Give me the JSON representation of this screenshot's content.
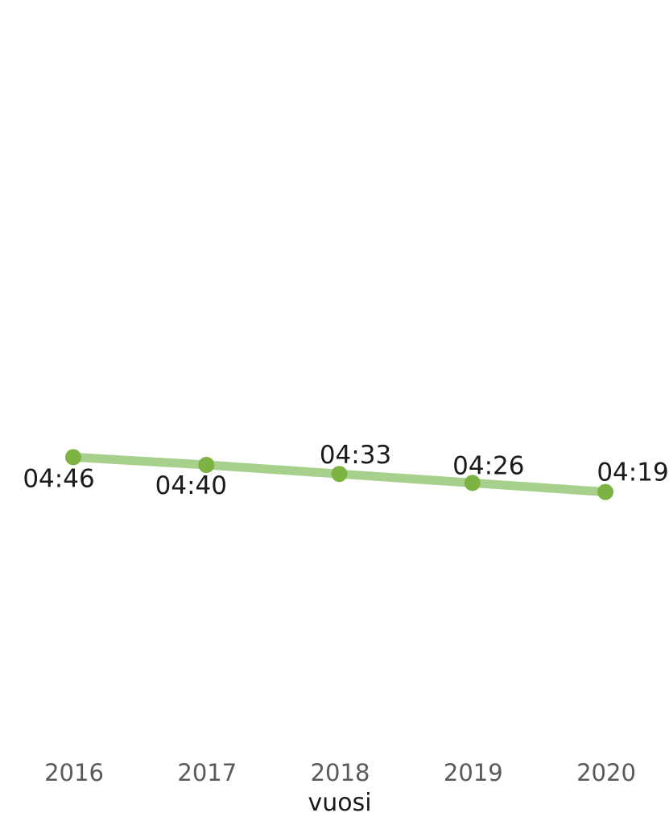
{
  "chart_data": {
    "type": "line",
    "title": "",
    "xlabel": "vuosi",
    "ylabel": "",
    "categories": [
      "2016",
      "2017",
      "2018",
      "2019",
      "2020"
    ],
    "series": [
      {
        "values": [
          4.7667,
          4.6667,
          4.55,
          4.4333,
          4.3167
        ],
        "labels": [
          "04:46",
          "04:40",
          "04:33",
          "04:26",
          "04:19"
        ]
      }
    ],
    "ylim": [
      0,
      10
    ],
    "grid": false,
    "legend": "none",
    "colors": {
      "line": "#a8d08d",
      "marker": "#7cb342"
    }
  }
}
